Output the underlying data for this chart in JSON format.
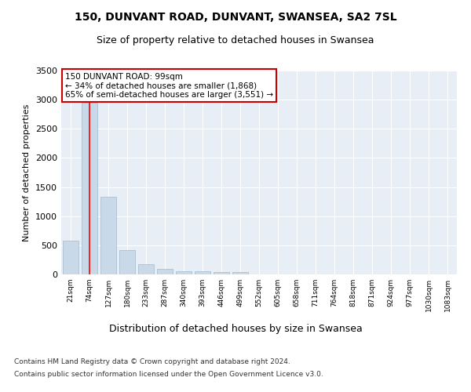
{
  "title1": "150, DUNVANT ROAD, DUNVANT, SWANSEA, SA2 7SL",
  "title2": "Size of property relative to detached houses in Swansea",
  "xlabel": "Distribution of detached houses by size in Swansea",
  "ylabel": "Number of detached properties",
  "bin_labels": [
    "21sqm",
    "74sqm",
    "127sqm",
    "180sqm",
    "233sqm",
    "287sqm",
    "340sqm",
    "393sqm",
    "446sqm",
    "499sqm",
    "552sqm",
    "605sqm",
    "658sqm",
    "711sqm",
    "764sqm",
    "818sqm",
    "871sqm",
    "924sqm",
    "977sqm",
    "1030sqm",
    "1083sqm"
  ],
  "bar_values": [
    575,
    2950,
    1330,
    415,
    175,
    90,
    55,
    55,
    45,
    45,
    5,
    3,
    2,
    1,
    1,
    1,
    0,
    0,
    0,
    0,
    0
  ],
  "bar_color": "#c9d9e8",
  "bar_edgecolor": "#a0b8cc",
  "red_line_bin": 1,
  "red_line_label": "150 DUNVANT ROAD: 99sqm",
  "annotation_line1": "← 34% of detached houses are smaller (1,868)",
  "annotation_line2": "65% of semi-detached houses are larger (3,551) →",
  "annotation_box_color": "#ffffff",
  "annotation_box_edgecolor": "#cc0000",
  "plot_background": "#e8eef5",
  "grid_color": "#ffffff",
  "footnote1": "Contains HM Land Registry data © Crown copyright and database right 2024.",
  "footnote2": "Contains public sector information licensed under the Open Government Licence v3.0.",
  "ylim": [
    0,
    3500
  ],
  "yticks": [
    0,
    500,
    1000,
    1500,
    2000,
    2500,
    3000,
    3500
  ]
}
